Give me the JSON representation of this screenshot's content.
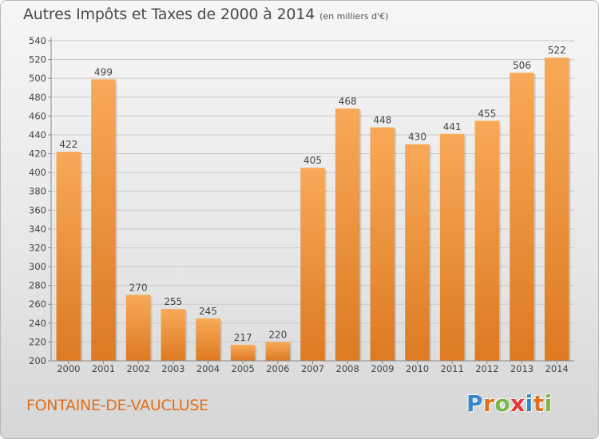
{
  "title": {
    "main": "Autres Impôts et Taxes de 2000 à 2014",
    "unit": "(en milliers d'€)"
  },
  "place": "FONTAINE-DE-VAUCLUSE",
  "logo": {
    "letters": [
      "P",
      "r",
      "o",
      "x",
      "i",
      "t",
      "i"
    ],
    "colors": [
      "#3a86c8",
      "#e0701c",
      "#7ab648",
      "#e23a3a",
      "#3a86c8",
      "#e0701c",
      "#7ab648"
    ]
  },
  "colors": {
    "bar_light": "#f8a957",
    "bar_dark": "#dd7a22",
    "title": "#4b4b4b",
    "place": "#e0701c"
  },
  "chart_data": {
    "type": "bar",
    "title": "Autres Impôts et Taxes de 2000 à 2014",
    "xlabel": "",
    "ylabel": "",
    "categories": [
      "2000",
      "2001",
      "2002",
      "2003",
      "2004",
      "2005",
      "2006",
      "2007",
      "2008",
      "2009",
      "2010",
      "2011",
      "2012",
      "2013",
      "2014"
    ],
    "values": [
      422,
      499,
      270,
      255,
      245,
      217,
      220,
      405,
      468,
      448,
      430,
      441,
      455,
      506,
      522
    ],
    "ylim": [
      200,
      540
    ],
    "yticks": [
      200,
      220,
      240,
      260,
      280,
      300,
      320,
      340,
      360,
      380,
      400,
      420,
      440,
      460,
      480,
      500,
      520,
      540
    ],
    "grid": true,
    "legend": "none"
  }
}
